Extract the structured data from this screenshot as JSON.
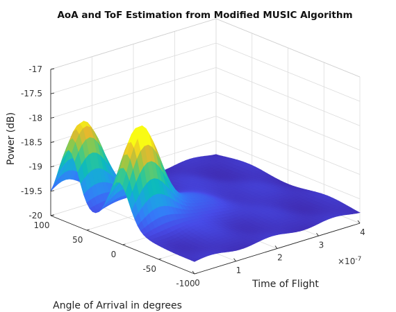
{
  "chart_data": {
    "type": "surface",
    "title": "AoA and ToF Estimation from Modified MUSIC Algorithm",
    "xlabel": "Time of Flight",
    "ylabel": "Angle of Arrival in degrees",
    "zlabel": "Power (dB)",
    "x_exponent_label": "×10",
    "x_exponent_power": "-7",
    "xlim": [
      0,
      4
    ],
    "ylim": [
      -100,
      100
    ],
    "zlim": [
      -20,
      -17
    ],
    "x_ticks": [
      0,
      1,
      2,
      3,
      4
    ],
    "y_ticks": [
      -100,
      -50,
      0,
      50,
      100
    ],
    "z_ticks": [
      -20,
      -19.5,
      -19,
      -18.5,
      -18,
      -17.5,
      -17
    ],
    "x_tick_labels": [
      "0",
      "1",
      "2",
      "3",
      "4"
    ],
    "y_tick_labels": [
      "-100",
      "-50",
      "0",
      "50",
      "100"
    ],
    "z_tick_labels": [
      "-20",
      "-19.5",
      "-19",
      "-18.5",
      "-18",
      "-17.5",
      "-17"
    ],
    "grid": true,
    "colormap": "parula",
    "baseline_power_db": -19.75,
    "peaks": [
      {
        "aoa_deg": 75,
        "tof": 0.35,
        "power_db": -17.9
      },
      {
        "aoa_deg": 5,
        "tof": 0.5,
        "power_db": -17.9
      }
    ]
  }
}
